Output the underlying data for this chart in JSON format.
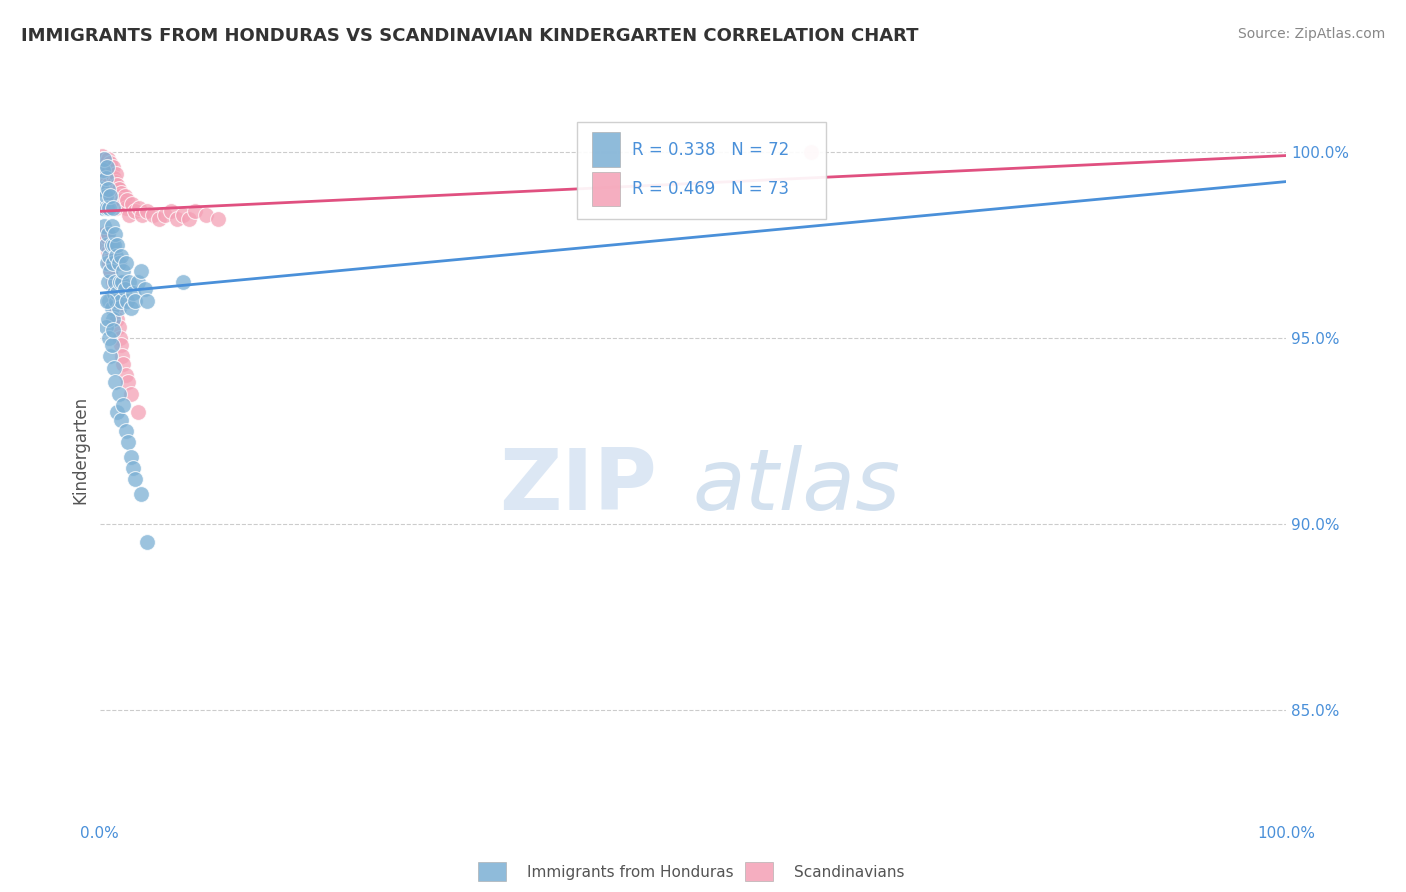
{
  "title": "IMMIGRANTS FROM HONDURAS VS SCANDINAVIAN KINDERGARTEN CORRELATION CHART",
  "source": "Source: ZipAtlas.com",
  "ylabel": "Kindergarten",
  "xlim": [
    0.0,
    1.0
  ],
  "ylim": [
    0.82,
    1.02
  ],
  "x_tick_labels": [
    "0.0%",
    "100.0%"
  ],
  "y_tick_labels": [
    "85.0%",
    "90.0%",
    "95.0%",
    "100.0%"
  ],
  "y_ticks": [
    0.85,
    0.9,
    0.95,
    1.0
  ],
  "legend_r_blue": "R = 0.338",
  "legend_n_blue": "N = 72",
  "legend_r_pink": "R = 0.469",
  "legend_n_pink": "N = 73",
  "blue_color": "#7bafd4",
  "pink_color": "#f4a0b5",
  "blue_line_color": "#4a90d9",
  "pink_line_color": "#e05080",
  "watermark_zip": "ZIP",
  "watermark_atlas": "atlas",
  "grid_color": "#cccccc",
  "background_color": "#ffffff",
  "title_color": "#333333",
  "axis_label_color": "#555555",
  "tick_label_color": "#4a90d9",
  "source_color": "#888888",
  "blue_x": [
    0.002,
    0.003,
    0.003,
    0.004,
    0.004,
    0.005,
    0.005,
    0.005,
    0.006,
    0.006,
    0.006,
    0.007,
    0.007,
    0.007,
    0.008,
    0.008,
    0.008,
    0.009,
    0.009,
    0.01,
    0.01,
    0.01,
    0.011,
    0.011,
    0.011,
    0.012,
    0.012,
    0.013,
    0.013,
    0.014,
    0.014,
    0.015,
    0.015,
    0.016,
    0.016,
    0.017,
    0.018,
    0.018,
    0.019,
    0.02,
    0.021,
    0.022,
    0.023,
    0.025,
    0.026,
    0.028,
    0.03,
    0.032,
    0.035,
    0.038,
    0.04,
    0.005,
    0.006,
    0.007,
    0.008,
    0.009,
    0.01,
    0.011,
    0.012,
    0.013,
    0.015,
    0.016,
    0.018,
    0.02,
    0.022,
    0.024,
    0.026,
    0.028,
    0.03,
    0.035,
    0.04,
    0.07
  ],
  "blue_y": [
    0.99,
    0.985,
    0.995,
    0.98,
    0.998,
    0.988,
    0.975,
    0.993,
    0.985,
    0.97,
    0.996,
    0.99,
    0.978,
    0.965,
    0.985,
    0.972,
    0.96,
    0.988,
    0.968,
    0.98,
    0.975,
    0.958,
    0.985,
    0.97,
    0.955,
    0.975,
    0.962,
    0.978,
    0.965,
    0.972,
    0.96,
    0.975,
    0.962,
    0.97,
    0.958,
    0.965,
    0.972,
    0.96,
    0.965,
    0.968,
    0.963,
    0.97,
    0.96,
    0.965,
    0.958,
    0.962,
    0.96,
    0.965,
    0.968,
    0.963,
    0.96,
    0.953,
    0.96,
    0.955,
    0.95,
    0.945,
    0.948,
    0.952,
    0.942,
    0.938,
    0.93,
    0.935,
    0.928,
    0.932,
    0.925,
    0.922,
    0.918,
    0.915,
    0.912,
    0.908,
    0.895,
    0.965
  ],
  "pink_x": [
    0.001,
    0.002,
    0.002,
    0.003,
    0.003,
    0.004,
    0.004,
    0.005,
    0.005,
    0.006,
    0.006,
    0.007,
    0.007,
    0.008,
    0.008,
    0.009,
    0.009,
    0.01,
    0.01,
    0.011,
    0.011,
    0.012,
    0.012,
    0.013,
    0.014,
    0.014,
    0.015,
    0.016,
    0.017,
    0.018,
    0.019,
    0.02,
    0.021,
    0.022,
    0.023,
    0.025,
    0.027,
    0.03,
    0.033,
    0.036,
    0.04,
    0.045,
    0.05,
    0.055,
    0.06,
    0.065,
    0.07,
    0.075,
    0.08,
    0.09,
    0.1,
    0.004,
    0.005,
    0.006,
    0.007,
    0.008,
    0.009,
    0.01,
    0.011,
    0.012,
    0.013,
    0.014,
    0.015,
    0.016,
    0.017,
    0.018,
    0.019,
    0.02,
    0.022,
    0.024,
    0.026,
    0.032,
    0.6
  ],
  "pink_y": [
    0.998,
    0.997,
    0.999,
    0.996,
    0.998,
    0.995,
    0.998,
    0.997,
    0.994,
    0.996,
    0.992,
    0.998,
    0.991,
    0.995,
    0.99,
    0.997,
    0.989,
    0.994,
    0.988,
    0.996,
    0.987,
    0.993,
    0.986,
    0.992,
    0.994,
    0.985,
    0.991,
    0.99,
    0.988,
    0.989,
    0.987,
    0.986,
    0.988,
    0.985,
    0.987,
    0.983,
    0.986,
    0.984,
    0.985,
    0.983,
    0.984,
    0.983,
    0.982,
    0.983,
    0.984,
    0.982,
    0.983,
    0.982,
    0.984,
    0.983,
    0.982,
    0.978,
    0.975,
    0.977,
    0.973,
    0.97,
    0.968,
    0.972,
    0.965,
    0.963,
    0.96,
    0.958,
    0.955,
    0.953,
    0.95,
    0.948,
    0.945,
    0.943,
    0.94,
    0.938,
    0.935,
    0.93,
    1.0
  ]
}
